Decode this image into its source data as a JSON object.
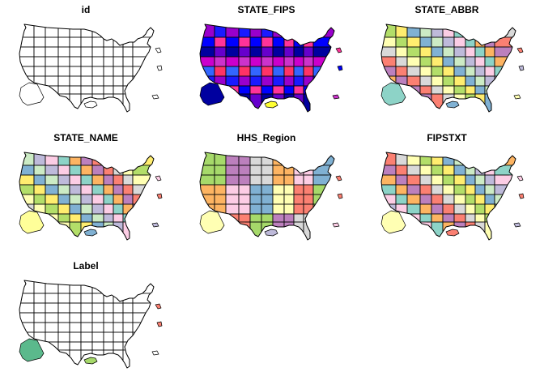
{
  "figure": {
    "panels": [
      {
        "title": "id",
        "fill_mode": "none",
        "palette": [
          "#ffffff"
        ]
      },
      {
        "title": "STATE_FIPS",
        "fill_mode": "all",
        "palette": [
          "#0000ff",
          "#3366ff",
          "#6600cc",
          "#9900cc",
          "#cc00cc",
          "#ff3399",
          "#ff3366",
          "#00009f",
          "#1a1aff",
          "#cc33cc"
        ],
        "hawaii_color": "#ffff33",
        "alaska_color": "#00009f",
        "territory_colors": [
          "#ff3399",
          "#0000ff",
          "#cc33cc"
        ]
      },
      {
        "title": "STATE_ABBR",
        "fill_mode": "all",
        "palette": [
          "#8dd3c7",
          "#ffffb3",
          "#bebada",
          "#fb8072",
          "#80b1d3",
          "#fdb462",
          "#b3de69",
          "#fccde5",
          "#d9d9d9",
          "#ccebc5",
          "#bc80bd",
          "#ffed6f"
        ],
        "hawaii_color": "#80b1d3",
        "alaska_color": "#8dd3c7",
        "territory_colors": [
          "#fb8072",
          "#bebada",
          "#ffffb3"
        ]
      },
      {
        "title": "STATE_NAME",
        "fill_mode": "all",
        "palette": [
          "#8dd3c7",
          "#ffffb3",
          "#bebada",
          "#fb8072",
          "#80b1d3",
          "#fdb462",
          "#b3de69",
          "#fccde5",
          "#d9d9d9",
          "#ccebc5",
          "#bc80bd",
          "#ffed6f"
        ],
        "hawaii_color": "#80b1d3",
        "alaska_color": "#ffff99",
        "territory_colors": [
          "#fccde5",
          "#fb8072",
          "#bebada"
        ]
      },
      {
        "title": "HHS_Region",
        "fill_mode": "regions",
        "palette": [
          "#a6d96a",
          "#bc80bd",
          "#d9d9d9",
          "#fdb462",
          "#fccde5",
          "#80b1d3",
          "#ffffb3",
          "#fb8072"
        ],
        "hawaii_color": "#bebada",
        "alaska_color": "#ffffb3",
        "territory_colors": [
          "#fb8072",
          "#fb8072",
          "#fccde5"
        ]
      },
      {
        "title": "FIPSTXT",
        "fill_mode": "all",
        "palette": [
          "#8dd3c7",
          "#ffffb3",
          "#bebada",
          "#fb8072",
          "#80b1d3",
          "#fdb462",
          "#b3de69",
          "#fccde5",
          "#d9d9d9",
          "#ccebc5",
          "#bc80bd",
          "#ffed6f"
        ],
        "hawaii_color": "#fb8072",
        "alaska_color": "#ffffb3",
        "territory_colors": [
          "#fccde5",
          "#fb8072",
          "#bebada"
        ]
      },
      {
        "title": "Label",
        "fill_mode": "none",
        "palette": [
          "#ffffff"
        ],
        "hawaii_color": "#a6d96a",
        "alaska_color": "#5bb98c",
        "territory_colors": [
          "#fb8072",
          "#fb8072",
          "#ffffff"
        ]
      }
    ]
  }
}
